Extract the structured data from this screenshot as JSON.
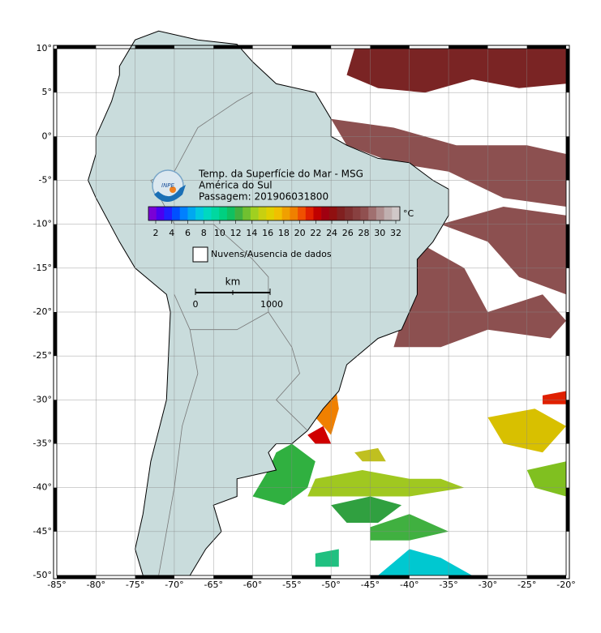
{
  "map": {
    "title": "Temp. da Superfície do Mar - MSG",
    "region": "América do Sul",
    "pass": "Passagem: 201906031800",
    "logo": "INPE",
    "colorbar": {
      "unit": "°C",
      "ticks": [
        2,
        4,
        6,
        8,
        10,
        12,
        14,
        16,
        18,
        20,
        22,
        24,
        26,
        28,
        30,
        32
      ],
      "colors": [
        "#7a00d6",
        "#4b00f0",
        "#2020ff",
        "#0050ff",
        "#0080ff",
        "#00a8f0",
        "#00c8e0",
        "#00d8c0",
        "#00d8a0",
        "#00d080",
        "#10c060",
        "#40b040",
        "#70c030",
        "#a0d020",
        "#c8d010",
        "#e0d000",
        "#f0c000",
        "#f0a000",
        "#f08000",
        "#f05000",
        "#e02000",
        "#c00000",
        "#a00010",
        "#901010",
        "#802020",
        "#803030",
        "#884040",
        "#905050",
        "#a07070",
        "#b09090",
        "#c0b0b0",
        "#d0c8c8"
      ]
    },
    "legend": "Nuvens/Ausencia de dados",
    "scale": {
      "unit": "km",
      "start": "0",
      "end": "1000"
    },
    "xlim": [
      -85,
      -20
    ],
    "ylim": [
      -50,
      10
    ],
    "xticks": [
      {
        "value": -85,
        "label": "-85°"
      },
      {
        "value": -80,
        "label": "-80°"
      },
      {
        "value": -75,
        "label": "-75°"
      },
      {
        "value": -70,
        "label": "-70°"
      },
      {
        "value": -65,
        "label": "-65°"
      },
      {
        "value": -60,
        "label": "-60°"
      },
      {
        "value": -55,
        "label": "-55°"
      },
      {
        "value": -50,
        "label": "-50°"
      },
      {
        "value": -45,
        "label": "-45°"
      },
      {
        "value": -40,
        "label": "-40°"
      },
      {
        "value": -35,
        "label": "-35°"
      },
      {
        "value": -30,
        "label": "-30°"
      },
      {
        "value": -25,
        "label": "-25°"
      },
      {
        "value": -20,
        "label": "-20°"
      }
    ],
    "yticks": [
      {
        "value": 10,
        "label": "10°"
      },
      {
        "value": 5,
        "label": "5°"
      },
      {
        "value": 0,
        "label": "0°"
      },
      {
        "value": -5,
        "label": "-5°"
      },
      {
        "value": -10,
        "label": "-10°"
      },
      {
        "value": -15,
        "label": "-15°"
      },
      {
        "value": -20,
        "label": "-20°"
      },
      {
        "value": -25,
        "label": "-25°"
      },
      {
        "value": -30,
        "label": "-30°"
      },
      {
        "value": -35,
        "label": "-35°"
      },
      {
        "value": -40,
        "label": "-40°"
      },
      {
        "value": -45,
        "label": "-45°"
      },
      {
        "value": -50,
        "label": "-50°"
      }
    ]
  }
}
